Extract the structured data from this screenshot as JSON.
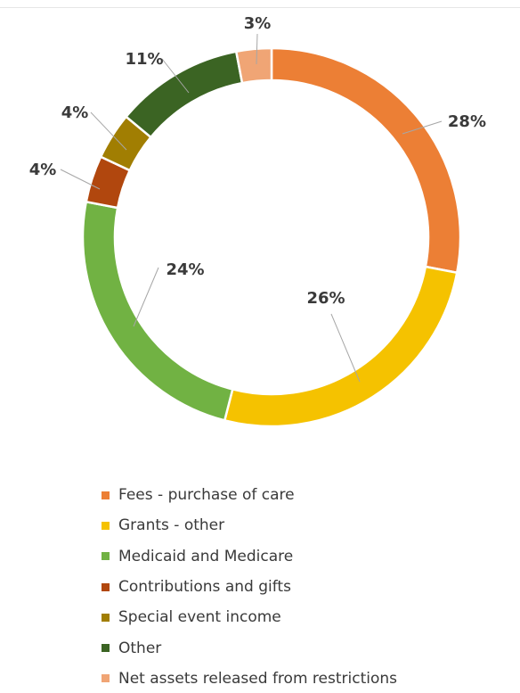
{
  "chart_data": {
    "type": "pie",
    "donut": true,
    "title": "",
    "legend_position": "bottom",
    "slices": [
      {
        "name": "Fees - purchase of care",
        "value": 28,
        "label": "28%",
        "color": "#ec7f35"
      },
      {
        "name": "Grants - other",
        "value": 26,
        "label": "26%",
        "color": "#f5c200"
      },
      {
        "name": "Medicaid and Medicare",
        "value": 24,
        "label": "24%",
        "color": "#71b243"
      },
      {
        "name": "Contributions and gifts",
        "value": 4,
        "label": "4%",
        "color": "#b1470e"
      },
      {
        "name": "Special event income",
        "value": 4,
        "label": "4%",
        "color": "#a17e02"
      },
      {
        "name": "Other",
        "value": 11,
        "label": "11%",
        "color": "#3b6423"
      },
      {
        "name": "Net assets released from restrictions",
        "value": 3,
        "label": "3%",
        "color": "#f0a575"
      }
    ]
  }
}
